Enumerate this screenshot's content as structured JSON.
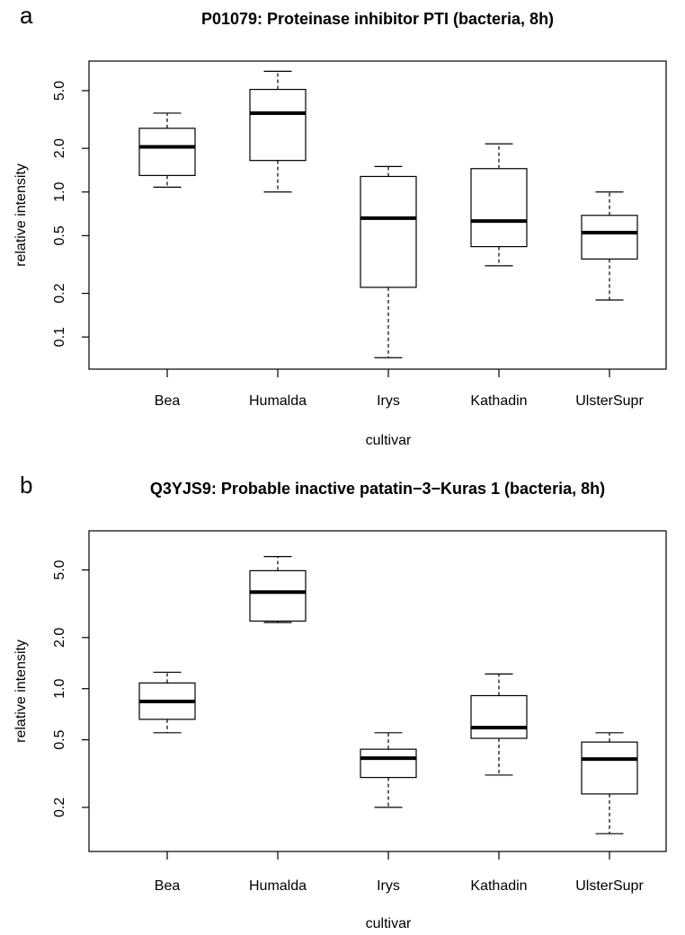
{
  "chart_data": [
    {
      "panel": "a",
      "type": "boxplot",
      "title": "P01079: Proteinase inhibitor PTI (bacteria, 8h)",
      "xlabel": "cultivar",
      "ylabel": "relative intensity",
      "yscale": "log",
      "ylim": [
        0.06,
        8.0
      ],
      "yticks": [
        {
          "value": 0.1,
          "label": "0.1"
        },
        {
          "value": 0.2,
          "label": "0.2"
        },
        {
          "value": 0.5,
          "label": "0.5"
        },
        {
          "value": 1.0,
          "label": "1.0"
        },
        {
          "value": 2.0,
          "label": "2.0"
        },
        {
          "value": 5.0,
          "label": "5.0"
        }
      ],
      "categories": [
        "Bea",
        "Humalda",
        "Irys",
        "Kathadin",
        "UlsterSupr"
      ],
      "boxes": [
        {
          "min": 1.08,
          "q1": 1.3,
          "median": 2.05,
          "q3": 2.75,
          "max": 3.5
        },
        {
          "min": 1.0,
          "q1": 1.65,
          "median": 3.5,
          "q3": 5.1,
          "max": 6.8
        },
        {
          "min": 0.072,
          "q1": 0.22,
          "median": 0.66,
          "q3": 1.28,
          "max": 1.5
        },
        {
          "min": 0.31,
          "q1": 0.42,
          "median": 0.63,
          "q3": 1.45,
          "max": 2.15
        },
        {
          "min": 0.18,
          "q1": 0.345,
          "median": 0.525,
          "q3": 0.69,
          "max": 1.0
        }
      ]
    },
    {
      "panel": "b",
      "type": "boxplot",
      "title": "Q3YJS9: Probable inactive patatin−3−Kuras 1 (bacteria, 8h)",
      "xlabel": "cultivar",
      "ylabel": "relative intensity",
      "yscale": "log",
      "ylim": [
        0.11,
        8.5
      ],
      "yticks": [
        {
          "value": 0.2,
          "label": "0.2"
        },
        {
          "value": 0.5,
          "label": "0.5"
        },
        {
          "value": 1.0,
          "label": "1.0"
        },
        {
          "value": 2.0,
          "label": "2.0"
        },
        {
          "value": 5.0,
          "label": "5.0"
        }
      ],
      "categories": [
        "Bea",
        "Humalda",
        "Irys",
        "Kathadin",
        "UlsterSupr"
      ],
      "boxes": [
        {
          "min": 0.55,
          "q1": 0.66,
          "median": 0.84,
          "q3": 1.08,
          "max": 1.25
        },
        {
          "min": 2.45,
          "q1": 2.5,
          "median": 3.7,
          "q3": 4.95,
          "max": 6.0
        },
        {
          "min": 0.2,
          "q1": 0.3,
          "median": 0.39,
          "q3": 0.44,
          "max": 0.55
        },
        {
          "min": 0.31,
          "q1": 0.51,
          "median": 0.59,
          "q3": 0.91,
          "max": 1.22
        },
        {
          "min": 0.14,
          "q1": 0.24,
          "median": 0.385,
          "q3": 0.485,
          "max": 0.55
        }
      ]
    }
  ]
}
